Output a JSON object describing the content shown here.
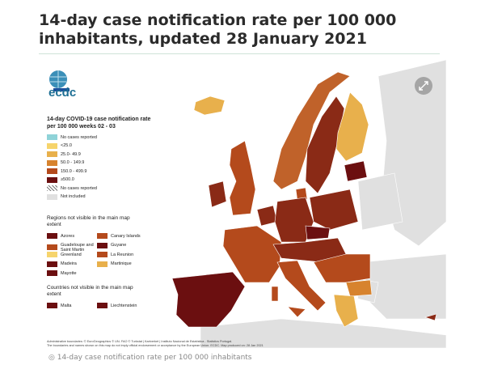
{
  "header": {
    "title": "14-day case notification rate per 100 000 inhabitants, updated 28 January 2021"
  },
  "logo": {
    "text": "ecdc"
  },
  "legend": {
    "title": "14-day COVID-19 case notification rate per 100 000 weeks  02 - 03",
    "items": [
      {
        "label": "No cases reported",
        "color": "#8fd3d8"
      },
      {
        "label": "<25.0",
        "color": "#f6d46c"
      },
      {
        "label": "25.0- 49.9",
        "color": "#e8b04c"
      },
      {
        "label": "50.0 - 149.9",
        "color": "#d7832e"
      },
      {
        "label": "150.0 - 499.9",
        "color": "#b44a1c"
      },
      {
        "label": "≥500.0",
        "color": "#6b0f10"
      },
      {
        "label": "No cases reported",
        "color": "#9a9a9a",
        "pattern": "hatched"
      },
      {
        "label": "Not included",
        "color": "#e0e0e0"
      }
    ]
  },
  "regions": {
    "title": "Regions not visible in the main map extent",
    "items": [
      {
        "label": "Azores",
        "color": "#6b0f10"
      },
      {
        "label": "Canary Islands",
        "color": "#b44a1c"
      },
      {
        "label": "Guadeloupe and Saint Martin",
        "color": "#b44a1c"
      },
      {
        "label": "Guyane",
        "color": "#6b0f10"
      },
      {
        "label": "Greenland",
        "color": "#f6d46c"
      },
      {
        "label": "La Reunion",
        "color": "#b44a1c"
      },
      {
        "label": "Madeira",
        "color": "#6b0f10"
      },
      {
        "label": "Martinique",
        "color": "#e8b04c"
      },
      {
        "label": "Mayotte",
        "color": "#6b0f10"
      }
    ]
  },
  "countries": {
    "title": "Countries not visible in the main map extent",
    "items": [
      {
        "label": "Malta",
        "color": "#6b0f10"
      },
      {
        "label": "Liechtenstein",
        "color": "#6b0f10"
      }
    ]
  },
  "footer": {
    "lines": [
      "Administrative boundaries: © EuroGeographics © UN- FAO © Turkstat | Kartverket | Instituto Nacional de Estatística - Statistics Portugal.",
      "The boundaries and names shown on this map do not imply official endorsement or acceptance by the European Union. ECDC. Map produced on: 28 Jan 2021"
    ]
  },
  "caption": "14-day case notification rate per 100 000 inhabitants"
}
